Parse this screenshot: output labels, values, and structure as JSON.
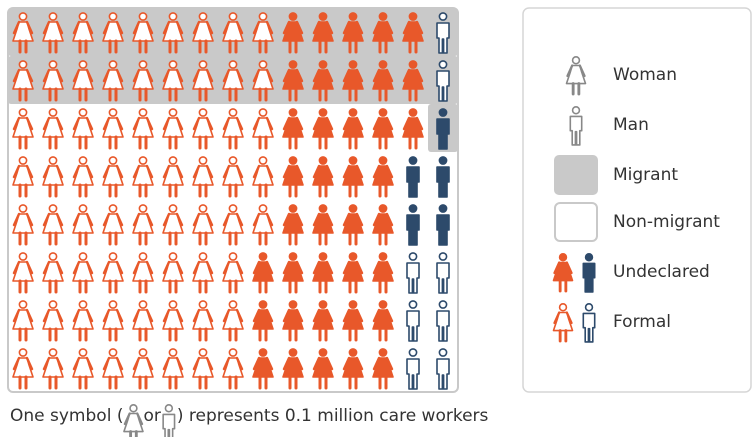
{
  "chart_data": {
    "type": "pictogram",
    "rows": [
      [
        9,
        5,
        0,
        1
      ],
      [
        9,
        5,
        0,
        1
      ],
      [
        9,
        5,
        1,
        0
      ],
      [
        9,
        4,
        2,
        0
      ],
      [
        9,
        4,
        2,
        0
      ],
      [
        8,
        5,
        0,
        2
      ],
      [
        8,
        5,
        0,
        2
      ],
      [
        8,
        5,
        0,
        2
      ]
    ],
    "migrant_cells": [
      15,
      15,
      1,
      0,
      0,
      0,
      0,
      0
    ],
    "woman_color": "#e8582a",
    "man_color": "#2d4a6b",
    "migrant_color": "#c9c9c9",
    "legend": {
      "woman": "Woman",
      "man": "Man",
      "migrant": "Migrant",
      "non_migrant": "Non-migrant",
      "undeclared": "Undeclared",
      "formal": "Formal"
    },
    "footnote": {
      "before": "One symbol (",
      "middle": "or",
      "after": ") represents 0.1 million care workers"
    }
  }
}
